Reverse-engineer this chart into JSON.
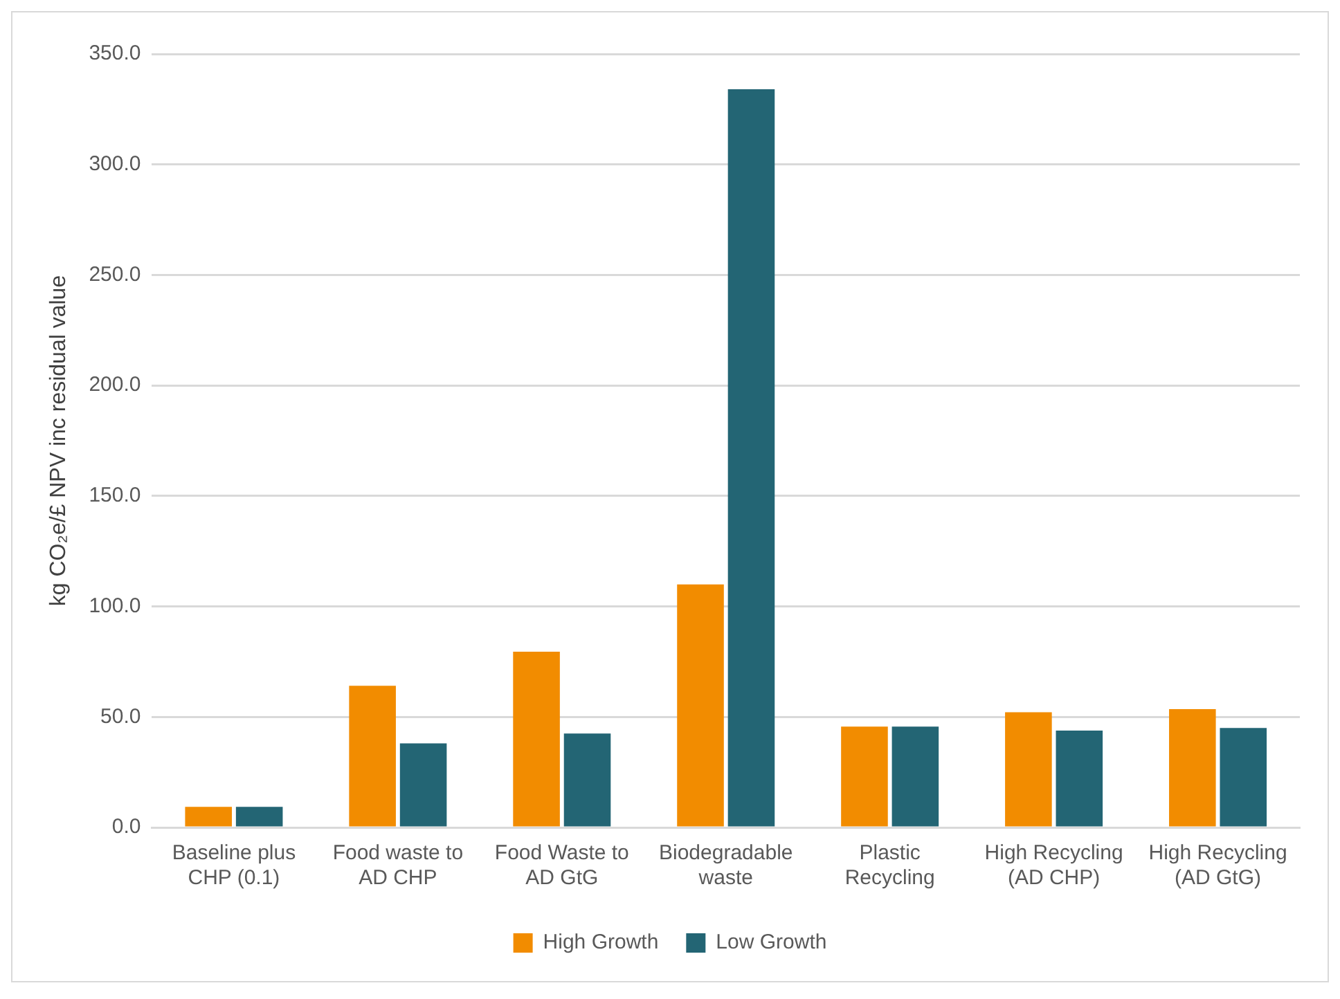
{
  "chart_data": {
    "type": "bar",
    "ylabel": "kg CO₂e/£ NPV inc residual value",
    "categories": [
      "Baseline plus CHP (0.1)",
      "Food waste to AD CHP",
      "Food Waste to AD GtG",
      "Biodegradable waste",
      "Plastic Recycling",
      "High Recycling (AD CHP)",
      "High Recycling (AD GtG)"
    ],
    "series": [
      {
        "name": "High Growth",
        "color": "#f28c00",
        "values": [
          9.3,
          64.1,
          79.5,
          110.0,
          45.6,
          52.1,
          53.5
        ]
      },
      {
        "name": "Low Growth",
        "color": "#236574",
        "values": [
          9.3,
          38.0,
          42.5,
          334.0,
          45.6,
          43.8,
          45.0
        ]
      }
    ],
    "ylim": [
      0,
      350
    ],
    "yticks": [
      {
        "value": 0,
        "label": "0.0"
      },
      {
        "value": 50,
        "label": "50.0"
      },
      {
        "value": 100,
        "label": "100.0"
      },
      {
        "value": 150,
        "label": "150.0"
      },
      {
        "value": 200,
        "label": "200.0"
      },
      {
        "value": 250,
        "label": "250.0"
      },
      {
        "value": 300,
        "label": "300.0"
      },
      {
        "value": 350,
        "label": "350.0"
      }
    ],
    "grid": "y",
    "legend": "bottom"
  }
}
